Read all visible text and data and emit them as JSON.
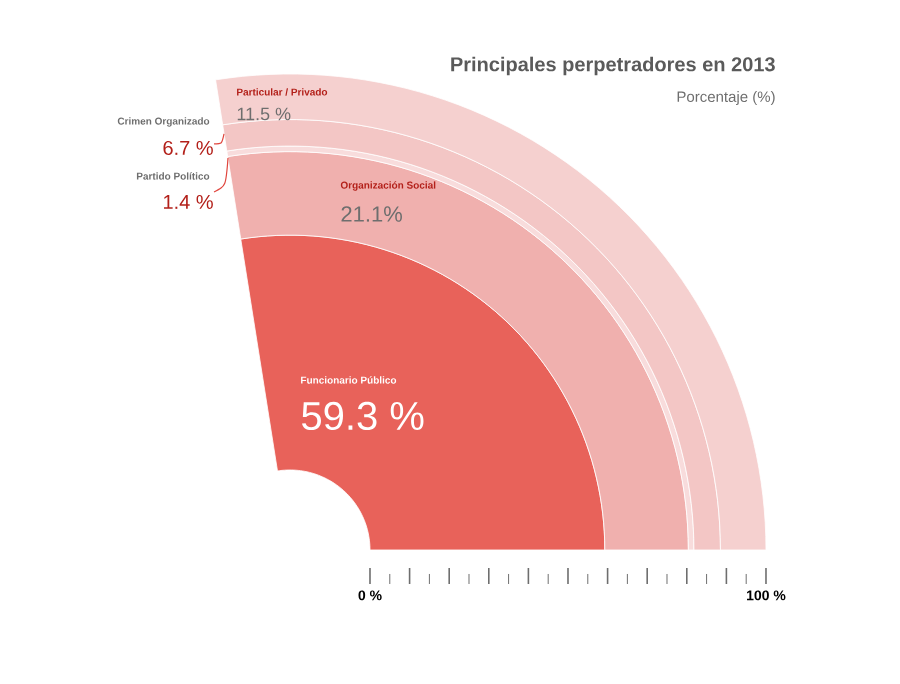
{
  "chart_data": {
    "type": "other",
    "title": "Principales perpetradores en 2013",
    "subtitle": "Porcentaje (%)",
    "categories": [
      "Funcionario Público",
      "Organización Social",
      "Partido Político",
      "Crimen Organizado",
      "Particular / Privado"
    ],
    "values": [
      59.3,
      21.1,
      1.4,
      6.7,
      11.5
    ],
    "value_labels": [
      "59.3 %",
      "21.1%",
      "1.4 %",
      "6.7 %",
      "11.5 %"
    ],
    "colors": [
      "#e8625a",
      "#f0b0ae",
      "#f8dcdc",
      "#f3c6c5",
      "#f5d0cf"
    ],
    "annotations": [
      "0 %",
      "100 %"
    ]
  }
}
